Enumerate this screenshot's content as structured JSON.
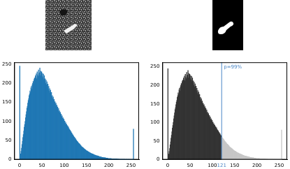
{
  "chart_data": [
    {
      "type": "histogram",
      "color": "#1f77b4",
      "grid": false,
      "bins": [
        0,
        1,
        2,
        3,
        4,
        5,
        6,
        7,
        8,
        9,
        10,
        11,
        12,
        13,
        14,
        15,
        16,
        17,
        18,
        19,
        20,
        21,
        22,
        23,
        24,
        25,
        26,
        27,
        28,
        29,
        30,
        31,
        32,
        33,
        34,
        35,
        36,
        37,
        38,
        39,
        40,
        41,
        42,
        43,
        44,
        45,
        46,
        47,
        48,
        49,
        50,
        51,
        52,
        53,
        54,
        55,
        56,
        57,
        58,
        59,
        60,
        61,
        62,
        63,
        64,
        65,
        66,
        67,
        68,
        69,
        70,
        71,
        72,
        73,
        74,
        75,
        76,
        77,
        78,
        79,
        80,
        81,
        82,
        83,
        84,
        85,
        86,
        87,
        88,
        89,
        90,
        91,
        92,
        93,
        94,
        95,
        96,
        97,
        98,
        99,
        100,
        101,
        102,
        103,
        104,
        105,
        106,
        107,
        108,
        109,
        110,
        111,
        112,
        113,
        114,
        115,
        116,
        117,
        118,
        119,
        120,
        121,
        122,
        123,
        124,
        125,
        126,
        127,
        128,
        129,
        130,
        131,
        132,
        133,
        134,
        135,
        136,
        137,
        138,
        139,
        140,
        141,
        142,
        143,
        144,
        145,
        146,
        147,
        148,
        149,
        150,
        151,
        152,
        153,
        154,
        155,
        156,
        157,
        158,
        159,
        160,
        161,
        162,
        163,
        164,
        165,
        166,
        167,
        168,
        169,
        170,
        171,
        172,
        173,
        174,
        175,
        176,
        177,
        178,
        179,
        180,
        181,
        182,
        183,
        184,
        185,
        186,
        187,
        188,
        189,
        190,
        191,
        192,
        193,
        194,
        195,
        196,
        197,
        198,
        199,
        200,
        201,
        202,
        203,
        204,
        205,
        206,
        207,
        208,
        209,
        210,
        211,
        212,
        213,
        214,
        215,
        216,
        217,
        218,
        219,
        220,
        221,
        222,
        223,
        224,
        225,
        226,
        227,
        228,
        229,
        230,
        231,
        232,
        233,
        234,
        235,
        236,
        237,
        238,
        239,
        240,
        241,
        242,
        243,
        244,
        245,
        246,
        247,
        248,
        249,
        250,
        251,
        252,
        253,
        254,
        255,
        256
      ],
      "values": [
        245,
        8,
        15,
        22,
        30,
        40,
        48,
        58,
        66,
        75,
        85,
        92,
        100,
        110,
        118,
        126,
        135,
        140,
        148,
        155,
        160,
        168,
        172,
        180,
        176,
        188,
        192,
        185,
        196,
        200,
        205,
        198,
        210,
        214,
        206,
        220,
        215,
        225,
        212,
        230,
        222,
        218,
        235,
        226,
        228,
        240,
        220,
        232,
        225,
        230,
        218,
        226,
        215,
        224,
        210,
        220,
        205,
        212,
        200,
        208,
        196,
        204,
        190,
        198,
        185,
        192,
        180,
        186,
        175,
        182,
        170,
        176,
        165,
        168,
        160,
        164,
        155,
        158,
        150,
        152,
        146,
        148,
        140,
        143,
        136,
        138,
        130,
        134,
        126,
        128,
        122,
        124,
        118,
        119,
        112,
        115,
        108,
        110,
        104,
        106,
        100,
        101,
        96,
        97,
        92,
        93,
        88,
        89,
        85,
        86,
        82,
        80,
        78,
        77,
        74,
        73,
        70,
        69,
        66,
        65,
        63,
        61,
        59,
        58,
        56,
        55,
        52,
        51,
        49,
        48,
        46,
        45,
        43,
        42,
        41,
        40,
        38,
        37,
        35,
        34,
        33,
        32,
        31,
        30,
        29,
        28,
        27,
        26,
        25,
        24,
        23,
        23,
        22,
        21,
        20,
        20,
        19,
        18,
        18,
        17,
        16,
        16,
        15,
        15,
        14,
        14,
        13,
        13,
        12,
        12,
        11,
        11,
        10,
        10,
        10,
        9,
        9,
        9,
        8,
        8,
        8,
        7,
        7,
        7,
        6,
        6,
        6,
        6,
        5,
        5,
        5,
        5,
        5,
        4,
        4,
        4,
        4,
        4,
        3,
        3,
        3,
        3,
        3,
        3,
        3,
        3,
        2,
        2,
        2,
        2,
        2,
        2,
        2,
        2,
        2,
        2,
        2,
        2,
        2,
        2,
        1,
        1,
        2,
        1,
        1,
        1,
        1,
        1,
        1,
        1,
        1,
        1,
        1,
        1,
        1,
        1,
        1,
        0,
        1,
        1,
        1,
        0,
        1,
        1,
        0,
        1,
        1,
        0,
        1,
        0,
        1,
        0,
        1,
        0,
        1,
        80
      ],
      "xlim": [
        -12,
        268
      ],
      "xticks": [
        0,
        50,
        100,
        150,
        200,
        250
      ],
      "ylim": [
        0,
        255
      ],
      "yticks": [
        0,
        50,
        100,
        150,
        200,
        250
      ]
    },
    {
      "type": "histogram",
      "color": "#333333",
      "grid": false,
      "bins": [
        0,
        1,
        2,
        3,
        4,
        5,
        6,
        7,
        8,
        9,
        10,
        11,
        12,
        13,
        14,
        15,
        16,
        17,
        18,
        19,
        20,
        21,
        22,
        23,
        24,
        25,
        26,
        27,
        28,
        29,
        30,
        31,
        32,
        33,
        34,
        35,
        36,
        37,
        38,
        39,
        40,
        41,
        42,
        43,
        44,
        45,
        46,
        47,
        48,
        49,
        50,
        51,
        52,
        53,
        54,
        55,
        56,
        57,
        58,
        59,
        60,
        61,
        62,
        63,
        64,
        65,
        66,
        67,
        68,
        69,
        70,
        71,
        72,
        73,
        74,
        75,
        76,
        77,
        78,
        79,
        80,
        81,
        82,
        83,
        84,
        85,
        86,
        87,
        88,
        89,
        90,
        91,
        92,
        93,
        94,
        95,
        96,
        97,
        98,
        99,
        100,
        101,
        102,
        103,
        104,
        105,
        106,
        107,
        108,
        109,
        110,
        111,
        112,
        113,
        114,
        115,
        116,
        117,
        118,
        119,
        120,
        121,
        122,
        123,
        124,
        125,
        126,
        127,
        128,
        129,
        130,
        131,
        132,
        133,
        134,
        135,
        136,
        137,
        138,
        139,
        140,
        141,
        142,
        143,
        144,
        145,
        146,
        147,
        148,
        149,
        150,
        151,
        152,
        153,
        154,
        155,
        156,
        157,
        158,
        159,
        160,
        161,
        162,
        163,
        164,
        165,
        166,
        167,
        168,
        169,
        170,
        171,
        172,
        173,
        174,
        175,
        176,
        177,
        178,
        179,
        180,
        181,
        182,
        183,
        184,
        185,
        186,
        187,
        188,
        189,
        190,
        191,
        192,
        193,
        194,
        195,
        196,
        197,
        198,
        199,
        200,
        201,
        202,
        203,
        204,
        205,
        206,
        207,
        208,
        209,
        210,
        211,
        212,
        213,
        214,
        215,
        216,
        217,
        218,
        219,
        220,
        221,
        222,
        223,
        224,
        225,
        226,
        227,
        228,
        229,
        230,
        231,
        232,
        233,
        234,
        235,
        236,
        237,
        238,
        239,
        240,
        241,
        242,
        243,
        244,
        245,
        246,
        247,
        248,
        249,
        250,
        251,
        252,
        253,
        254,
        255,
        256
      ],
      "values": [
        245,
        8,
        15,
        22,
        30,
        40,
        48,
        58,
        66,
        75,
        85,
        92,
        100,
        110,
        118,
        126,
        135,
        140,
        148,
        155,
        160,
        168,
        172,
        180,
        176,
        188,
        192,
        185,
        196,
        200,
        205,
        198,
        210,
        214,
        206,
        220,
        215,
        225,
        212,
        230,
        222,
        218,
        235,
        226,
        228,
        240,
        220,
        232,
        225,
        230,
        218,
        226,
        215,
        224,
        210,
        220,
        205,
        212,
        200,
        208,
        196,
        204,
        190,
        198,
        185,
        192,
        180,
        186,
        175,
        182,
        170,
        176,
        165,
        168,
        160,
        164,
        155,
        158,
        150,
        152,
        146,
        148,
        140,
        143,
        136,
        138,
        130,
        134,
        126,
        128,
        122,
        124,
        118,
        119,
        112,
        115,
        108,
        110,
        104,
        106,
        100,
        101,
        96,
        97,
        92,
        93,
        88,
        89,
        85,
        86,
        82,
        80,
        78,
        77,
        74,
        73,
        70,
        69,
        66,
        65,
        63,
        61,
        59,
        58,
        56,
        55,
        52,
        51,
        49,
        48,
        46,
        45,
        43,
        42,
        41,
        40,
        38,
        37,
        35,
        34,
        33,
        32,
        31,
        30,
        29,
        28,
        27,
        26,
        25,
        24,
        23,
        23,
        22,
        21,
        20,
        20,
        19,
        18,
        18,
        17,
        16,
        16,
        15,
        15,
        14,
        14,
        13,
        13,
        12,
        12,
        11,
        11,
        10,
        10,
        10,
        9,
        9,
        9,
        8,
        8,
        8,
        7,
        7,
        7,
        6,
        6,
        6,
        6,
        5,
        5,
        5,
        5,
        5,
        4,
        4,
        4,
        4,
        4,
        3,
        3,
        3,
        3,
        3,
        3,
        3,
        3,
        2,
        2,
        2,
        2,
        2,
        2,
        2,
        2,
        2,
        2,
        2,
        2,
        2,
        2,
        1,
        1,
        2,
        1,
        1,
        1,
        1,
        1,
        1,
        1,
        1,
        1,
        1,
        1,
        1,
        1,
        1,
        0,
        1,
        1,
        1,
        0,
        1,
        1,
        0,
        1,
        1,
        0,
        1,
        0,
        1,
        0,
        1,
        0,
        1,
        80
      ],
      "threshold": {
        "value": 121,
        "label": "p=99%",
        "color": "#4a86c5",
        "colors": [
          "#333333",
          "#c6c6c6"
        ]
      },
      "xlim": [
        -12,
        268
      ],
      "xticks": [
        0,
        50,
        100,
        121,
        150,
        200,
        250
      ],
      "ylim": [
        0,
        262
      ],
      "yticks": [
        0,
        50,
        100,
        150,
        200,
        250
      ]
    }
  ]
}
